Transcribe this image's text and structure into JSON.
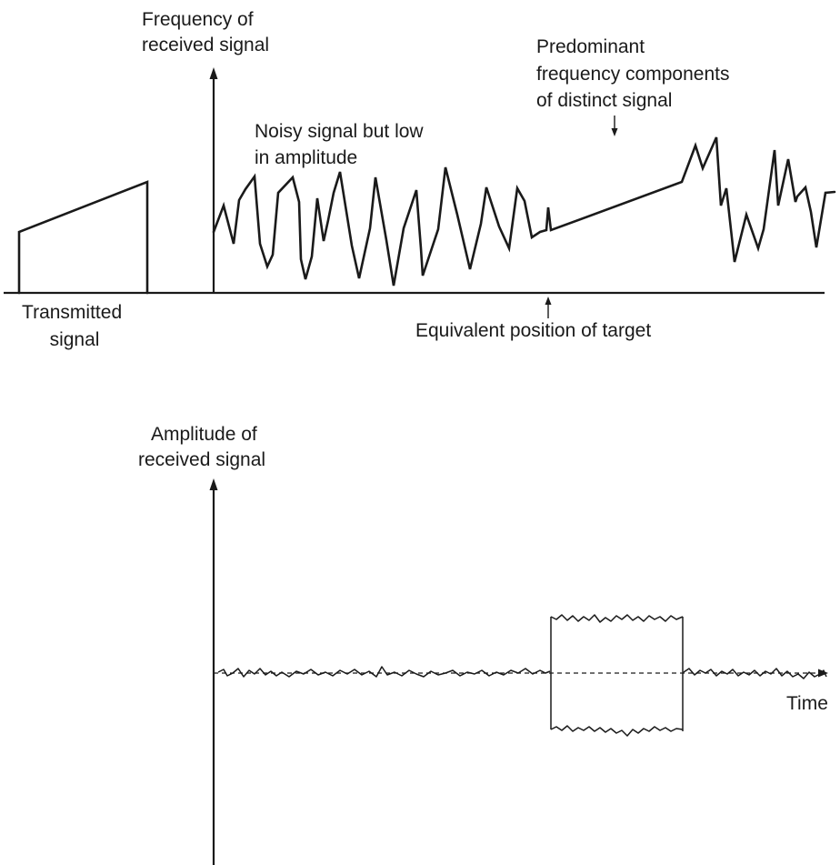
{
  "top_diagram": {
    "y_axis_label": [
      "Frequency of",
      "received signal"
    ],
    "transmitted_label": [
      "Transmitted",
      "signal"
    ],
    "noise_label": [
      "Noisy signal but low",
      "in amplitude"
    ],
    "components_label": [
      "Predominant",
      "frequency components",
      "of distinct signal"
    ],
    "target_label": "Equivalent position of target"
  },
  "bottom_diagram": {
    "y_axis_label": [
      "Amplitude of",
      "received signal"
    ],
    "x_axis_label": "Time"
  },
  "colors": {
    "ink": "#1a1a1a",
    "background": "#ffffff"
  }
}
